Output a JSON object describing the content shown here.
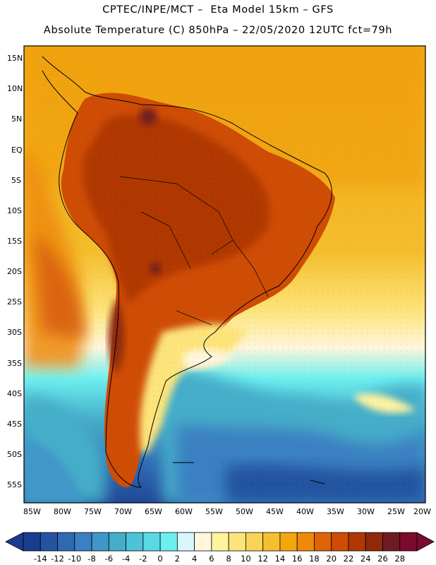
{
  "header": {
    "line1": "CPTEC/INPE/MCT –  Eta Model 15km – GFS",
    "line2": "Absolute Temperature (C) 850hPa – 22/05/2020 12UTC fct=79h"
  },
  "map": {
    "lat_labels": [
      "15N",
      "10N",
      "5N",
      "EQ",
      "5S",
      "10S",
      "15S",
      "20S",
      "25S",
      "30S",
      "35S",
      "40S",
      "45S",
      "50S",
      "55S"
    ],
    "lon_labels": [
      "85W",
      "80W",
      "75W",
      "70W",
      "65W",
      "60W",
      "55W",
      "50W",
      "45W",
      "40W",
      "35W",
      "30W",
      "25W",
      "20W"
    ]
  },
  "colorbar": {
    "labels": [
      "-14",
      "-12",
      "-10",
      "-8",
      "-6",
      "-4",
      "-2",
      "0",
      "2",
      "4",
      "6",
      "8",
      "10",
      "12",
      "14",
      "16",
      "18",
      "20",
      "22",
      "24",
      "26",
      "28"
    ],
    "colors": [
      "#1a3c8f",
      "#2453a0",
      "#2e69b2",
      "#3a80c2",
      "#3f97c9",
      "#45adc9",
      "#4cc3d6",
      "#5ad8e6",
      "#6befef",
      "#d9f6fb",
      "#fff6dc",
      "#fff3a0",
      "#fde47a",
      "#f9d356",
      "#f5bf2e",
      "#f3a60e",
      "#ee8a0a",
      "#e06406",
      "#cf4c05",
      "#b03804",
      "#8e2a0a",
      "#6e1c22",
      "#7a0b2c"
    ]
  }
}
